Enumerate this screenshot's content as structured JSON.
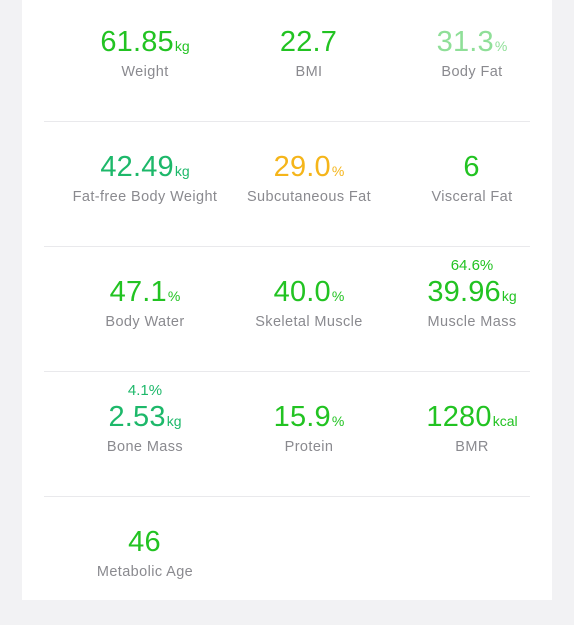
{
  "colors": {
    "green": "#22c322",
    "teal_green": "#1db86a",
    "light_green": "#8fdf98",
    "orange": "#f5b51a",
    "label_gray": "#8a8a8f"
  },
  "metrics": [
    {
      "value": "61.85",
      "unit": "kg",
      "label": "Weight",
      "color": "#22c322"
    },
    {
      "value": "22.7",
      "unit": "",
      "label": "BMI",
      "color": "#22c322"
    },
    {
      "value": "31.3",
      "unit": "%",
      "label": "Body Fat",
      "color": "#8fdf98"
    },
    {
      "value": "42.49",
      "unit": "kg",
      "label": "Fat-free Body Weight",
      "color": "#1db86a"
    },
    {
      "value": "29.0",
      "unit": "%",
      "label": "Subcutaneous Fat",
      "color": "#f5b51a"
    },
    {
      "value": "6",
      "unit": "",
      "label": "Visceral Fat",
      "color": "#22c322"
    },
    {
      "value": "47.1",
      "unit": "%",
      "label": "Body Water",
      "color": "#22c322"
    },
    {
      "value": "40.0",
      "unit": "%",
      "label": "Skeletal Muscle",
      "color": "#22c322"
    },
    {
      "value": "39.96",
      "unit": "kg",
      "label": "Muscle Mass",
      "color": "#22c322",
      "super": "64.6%"
    },
    {
      "value": "2.53",
      "unit": "kg",
      "label": "Bone Mass",
      "color": "#1db86a",
      "super": "4.1%"
    },
    {
      "value": "15.9",
      "unit": "%",
      "label": "Protein",
      "color": "#22c322"
    },
    {
      "value": "1280",
      "unit": "kcal",
      "label": "BMR",
      "color": "#22c322"
    },
    {
      "value": "46",
      "unit": "",
      "label": "Metabolic Age",
      "color": "#22c322"
    }
  ]
}
